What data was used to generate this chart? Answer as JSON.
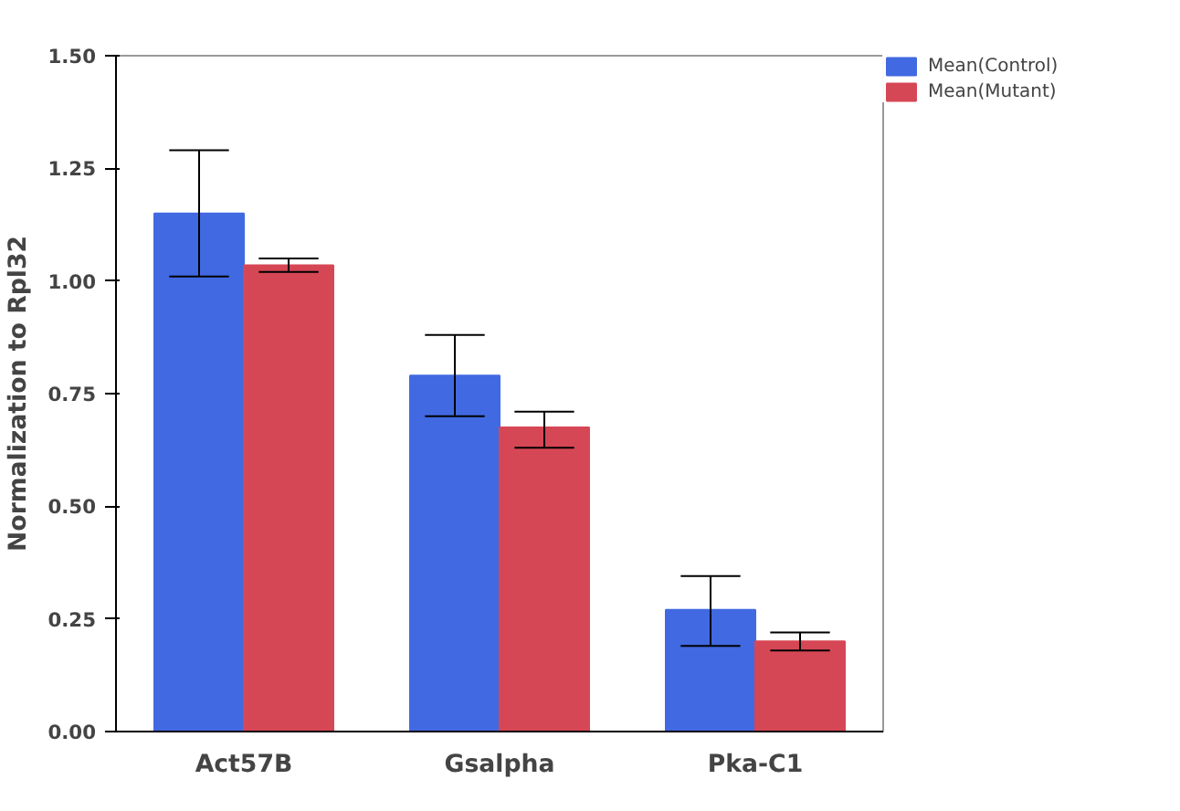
{
  "chart_data": {
    "type": "bar",
    "ylabel": "Normalization to Rpl32",
    "categories": [
      "Act57B",
      "Gsalpha",
      "Pka-C1"
    ],
    "series": [
      {
        "name": "Mean(Control)",
        "color": "#4169e1",
        "values": [
          1.15,
          0.79,
          0.27
        ],
        "errors": [
          [
            1.01,
            1.29
          ],
          [
            0.7,
            0.88
          ],
          [
            0.19,
            0.345
          ]
        ]
      },
      {
        "name": "Mean(Mutant)",
        "color": "#d64755",
        "values": [
          1.035,
          0.675,
          0.2
        ],
        "errors": [
          [
            1.02,
            1.05
          ],
          [
            0.63,
            0.71
          ],
          [
            0.18,
            0.22
          ]
        ]
      }
    ],
    "ylim": [
      0,
      1.5
    ],
    "yticks": [
      {
        "value": 0,
        "label": "0.00"
      },
      {
        "value": 0.25,
        "label": "0.25"
      },
      {
        "value": 0.5,
        "label": "0.50"
      },
      {
        "value": 0.75,
        "label": "0.75"
      },
      {
        "value": 1,
        "label": "1.00"
      },
      {
        "value": 1.25,
        "label": "1.25"
      },
      {
        "value": 1.5,
        "label": "1.50"
      }
    ],
    "grid": false,
    "legend": "top right"
  }
}
